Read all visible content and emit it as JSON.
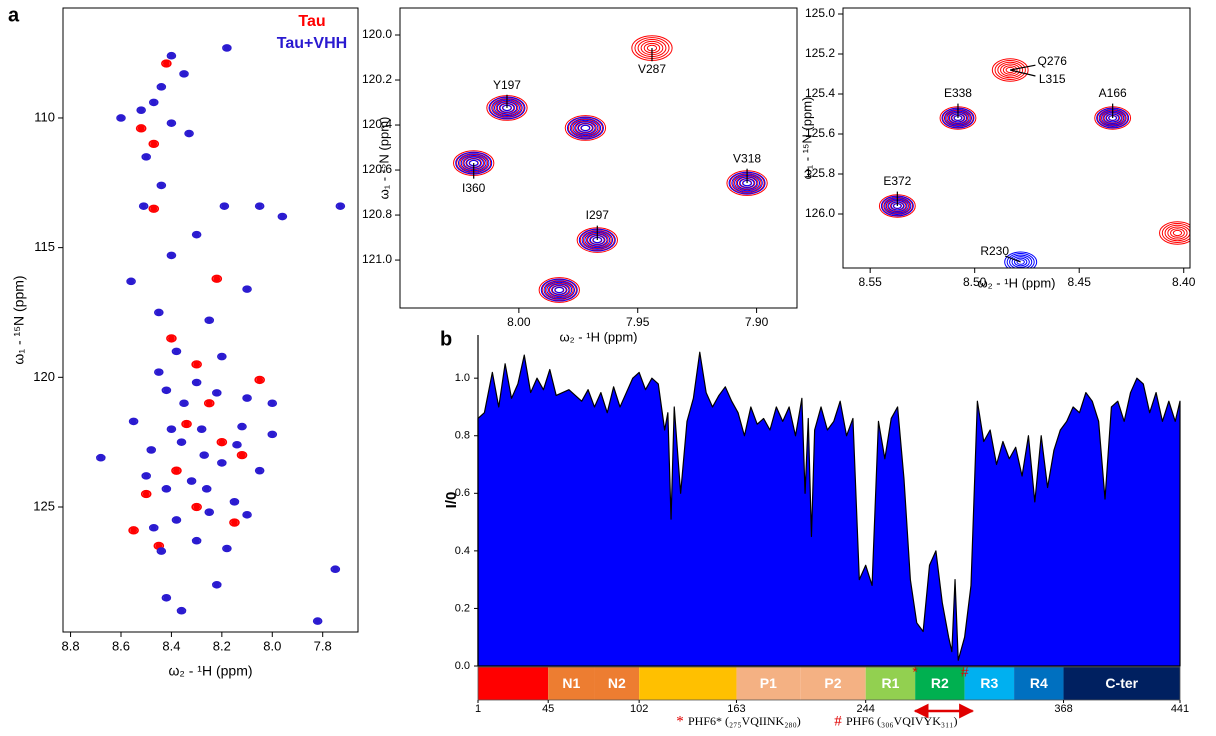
{
  "panel_labels": [
    "a",
    "b"
  ],
  "chart_data": [
    {
      "type": "scatter",
      "xlabel": "ω₂ - ¹H  (ppm)",
      "ylabel": "ω₁ - ¹⁵N  (ppm)",
      "legend": "upper right",
      "xlim": [
        8.83,
        7.66
      ],
      "ylim": [
        105.76,
        129.82
      ],
      "xticks": [
        8.8,
        8.6,
        8.4,
        8.2,
        {
          "value": 8.0,
          "label": "8.0"
        },
        7.8
      ],
      "yticks": [
        110,
        115,
        120,
        125
      ],
      "series": [
        {
          "name": "Tau",
          "color": "#ff0000",
          "x": [
            8.52,
            8.47,
            8.47,
            8.22,
            8.4,
            8.3,
            8.25,
            8.38,
            8.12,
            8.55,
            8.45,
            8.3,
            8.05,
            8.42,
            8.34,
            8.5,
            8.2,
            8.15
          ],
          "y": [
            110.4,
            111.0,
            113.5,
            116.2,
            118.5,
            119.5,
            121.0,
            123.6,
            123.0,
            125.9,
            126.5,
            125.0,
            120.1,
            107.9,
            121.8,
            124.5,
            122.5,
            125.6
          ]
        },
        {
          "name": "Tau+VHH",
          "color": "#2a1ad0",
          "x": [
            8.4,
            8.18,
            8.35,
            8.44,
            8.52,
            8.47,
            8.4,
            8.6,
            8.33,
            8.5,
            8.44,
            8.51,
            8.19,
            8.05,
            7.96,
            7.73,
            8.3,
            8.4,
            8.56,
            8.1,
            8.45,
            8.25,
            8.38,
            8.2,
            8.3,
            8.42,
            8.1,
            8.0,
            8.55,
            8.28,
            8.36,
            8.48,
            8.2,
            8.68,
            8.05,
            8.32,
            8.42,
            8.15,
            8.25,
            8.38,
            8.47,
            8.3,
            8.44,
            8.18,
            8.22,
            8.42,
            8.36,
            7.82,
            7.75,
            8.0,
            8.12,
            8.27,
            8.35,
            8.22,
            8.45,
            8.14,
            8.4,
            8.26,
            8.1,
            8.5
          ],
          "y": [
            107.6,
            107.3,
            108.3,
            108.8,
            109.7,
            109.4,
            110.2,
            110.0,
            110.6,
            111.5,
            112.6,
            113.4,
            113.4,
            113.4,
            113.8,
            113.4,
            114.5,
            115.3,
            116.3,
            116.6,
            117.5,
            117.8,
            119.0,
            119.2,
            120.2,
            120.5,
            120.8,
            121.0,
            121.7,
            122.0,
            122.5,
            122.8,
            123.3,
            123.1,
            123.6,
            124.0,
            124.3,
            124.8,
            125.2,
            125.5,
            125.8,
            126.3,
            126.7,
            126.6,
            128.0,
            128.5,
            129.0,
            129.4,
            127.4,
            122.2,
            121.9,
            123.0,
            121.0,
            120.6,
            119.8,
            122.6,
            122.0,
            124.3,
            125.3,
            123.8
          ]
        }
      ]
    },
    {
      "type": "scatter",
      "xlabel": "ω₂ - ¹H  (ppm)",
      "ylabel": "ω₁ - ¹⁵N  (ppm)",
      "xlim": [
        8.05,
        7.883
      ],
      "ylim": [
        119.88,
        121.213
      ],
      "xticks": [
        {
          "value": 8.0,
          "label": "8.00"
        },
        7.95,
        {
          "value": 7.9,
          "label": "7.90"
        }
      ],
      "yticks": [
        {
          "value": 120,
          "label": "120.0"
        },
        120.2,
        120.4,
        120.6,
        120.8,
        {
          "value": 121,
          "label": "121.0"
        }
      ],
      "series": [
        {
          "name": "Tau",
          "color": "#ff0000",
          "x": [
            8.005,
            7.944,
            7.972,
            8.019,
            7.904,
            7.967,
            7.983
          ],
          "y": [
            120.324,
            120.058,
            120.413,
            120.569,
            120.658,
            120.911,
            121.133
          ]
        },
        {
          "name": "Tau+VHH",
          "color": "#0000ff",
          "x": [
            8.005,
            7.972,
            8.019,
            7.904,
            7.967,
            7.983
          ],
          "y": [
            120.324,
            120.413,
            120.569,
            120.658,
            120.911,
            121.133
          ]
        }
      ],
      "annotations": [
        {
          "text": "Y197",
          "x": 8.005,
          "y": 120.324
        },
        {
          "text": "V287",
          "x": 7.944,
          "y": 120.058
        },
        {
          "text": "I360",
          "x": 8.019,
          "y": 120.569
        },
        {
          "text": "V318",
          "x": 7.904,
          "y": 120.658
        },
        {
          "text": "I297",
          "x": 7.967,
          "y": 120.911
        }
      ]
    },
    {
      "type": "scatter",
      "xlabel": "ω₂ - ¹H  (ppm)",
      "ylabel": "ω₁ - ¹⁵N  (ppm)",
      "xlim": [
        8.563,
        8.397
      ],
      "ylim": [
        124.97,
        126.27
      ],
      "xticks": [
        8.55,
        {
          "value": 8.5,
          "label": "8.50"
        },
        8.45,
        {
          "value": 8.4,
          "label": "8.40"
        }
      ],
      "yticks": [
        {
          "value": 125,
          "label": "125.0"
        },
        125.2,
        125.4,
        125.6,
        125.8,
        {
          "value": 126,
          "label": "126.0"
        }
      ],
      "series": [
        {
          "name": "Tau",
          "color": "#ff0000",
          "x": [
            8.483,
            8.508,
            8.434,
            8.537,
            8.403
          ],
          "y": [
            125.28,
            125.52,
            125.52,
            125.96,
            126.095
          ]
        },
        {
          "name": "Tau+VHH",
          "color": "#0000ff",
          "x": [
            8.508,
            8.434,
            8.537,
            8.478
          ],
          "y": [
            125.52,
            125.52,
            125.96,
            126.24
          ]
        }
      ],
      "annotations": [
        {
          "text": "Q276",
          "x": 8.483,
          "y": 125.28
        },
        {
          "text": "L315",
          "x": 8.483,
          "y": 125.28
        },
        {
          "text": "E338",
          "x": 8.508,
          "y": 125.52
        },
        {
          "text": "A166",
          "x": 8.434,
          "y": 125.52
        },
        {
          "text": "E372",
          "x": 8.537,
          "y": 125.96
        },
        {
          "text": "R230",
          "x": 8.478,
          "y": 126.24
        }
      ]
    },
    {
      "type": "area",
      "ylabel": "I/0",
      "color": "#0000ff",
      "xlim": [
        1,
        441
      ],
      "ylim": [
        0,
        1.15
      ],
      "yticks": [
        {
          "value": 0,
          "label": "0.0"
        },
        0.2,
        0.4,
        0.6,
        0.8,
        {
          "value": 1,
          "label": "1.0"
        }
      ],
      "x": [
        1,
        5,
        10,
        14,
        18,
        22,
        26,
        30,
        34,
        38,
        42,
        46,
        50,
        54,
        58,
        62,
        66,
        70,
        74,
        78,
        82,
        86,
        90,
        94,
        98,
        102,
        106,
        110,
        114,
        118,
        120,
        122,
        124,
        128,
        132,
        136,
        140,
        144,
        148,
        152,
        156,
        160,
        164,
        168,
        172,
        176,
        180,
        184,
        188,
        192,
        196,
        200,
        204,
        206,
        208,
        210,
        212,
        216,
        220,
        224,
        228,
        232,
        236,
        240,
        244,
        248,
        252,
        256,
        260,
        264,
        268,
        272,
        276,
        280,
        284,
        288,
        292,
        296,
        298,
        300,
        302,
        306,
        310,
        314,
        318,
        322,
        326,
        330,
        334,
        338,
        342,
        346,
        350,
        354,
        358,
        362,
        366,
        370,
        374,
        378,
        382,
        386,
        390,
        394,
        398,
        402,
        406,
        410,
        414,
        418,
        422,
        426,
        430,
        434,
        438,
        441
      ],
      "values": [
        0.86,
        0.88,
        1.02,
        0.9,
        1.05,
        0.93,
        0.98,
        1.08,
        0.95,
        1.0,
        0.96,
        1.03,
        0.94,
        0.95,
        0.96,
        0.94,
        0.92,
        0.96,
        0.9,
        0.95,
        0.88,
        0.97,
        0.9,
        0.95,
        1.0,
        1.02,
        0.96,
        1.0,
        0.98,
        0.82,
        0.88,
        0.51,
        0.9,
        0.6,
        0.85,
        0.93,
        1.09,
        0.95,
        0.9,
        0.94,
        0.97,
        0.92,
        0.88,
        0.8,
        0.9,
        0.84,
        0.86,
        0.82,
        0.9,
        0.85,
        0.9,
        0.8,
        0.93,
        0.6,
        0.86,
        0.45,
        0.82,
        0.9,
        0.82,
        0.85,
        0.92,
        0.8,
        0.86,
        0.3,
        0.35,
        0.28,
        0.85,
        0.72,
        0.86,
        0.9,
        0.65,
        0.3,
        0.15,
        0.12,
        0.35,
        0.4,
        0.22,
        0.1,
        0.05,
        0.3,
        0.02,
        0.1,
        0.28,
        0.92,
        0.78,
        0.82,
        0.7,
        0.78,
        0.72,
        0.76,
        0.66,
        0.8,
        0.57,
        0.8,
        0.62,
        0.75,
        0.82,
        0.85,
        0.9,
        0.88,
        0.95,
        0.92,
        0.85,
        0.58,
        0.9,
        0.92,
        0.85,
        0.95,
        1.0,
        0.98,
        0.88,
        0.95,
        0.85,
        0.92,
        0.85,
        0.92
      ],
      "domains": [
        {
          "name": null,
          "start": 1,
          "end": 45,
          "color": "#ff0000"
        },
        {
          "name": "N1",
          "start": 45,
          "end": 74,
          "color": "#ed7d31"
        },
        {
          "name": "N2",
          "start": 74,
          "end": 102,
          "color": "#ed7d31"
        },
        {
          "name": null,
          "start": 102,
          "end": 163,
          "color": "#ffc000"
        },
        {
          "name": "P1",
          "start": 163,
          "end": 203,
          "color": "#f4b183"
        },
        {
          "name": "P2",
          "start": 203,
          "end": 244,
          "color": "#f4b183"
        },
        {
          "name": "R1",
          "start": 244,
          "end": 275,
          "color": "#92d050"
        },
        {
          "name": "R2",
          "start": 275,
          "end": 306,
          "color": "#00b050"
        },
        {
          "name": "R3",
          "start": 306,
          "end": 337,
          "color": "#00b0f0"
        },
        {
          "name": "R4",
          "start": 337,
          "end": 368,
          "color": "#0070c0"
        },
        {
          "name": "C-ter",
          "start": 368,
          "end": 441,
          "color": "#002060"
        }
      ],
      "domain_ticks": [
        1,
        45,
        102,
        163,
        244,
        368,
        441
      ],
      "motifs": [
        {
          "symbol": "*",
          "start": 275,
          "end": 280,
          "text": "PHF6* (₂₇₅VQIINK₂₈₀)"
        },
        {
          "symbol": "#",
          "start": 306,
          "end": 311,
          "text": "PHF6 (₃₀₆VQIVYK₃₁₁)"
        }
      ]
    }
  ]
}
